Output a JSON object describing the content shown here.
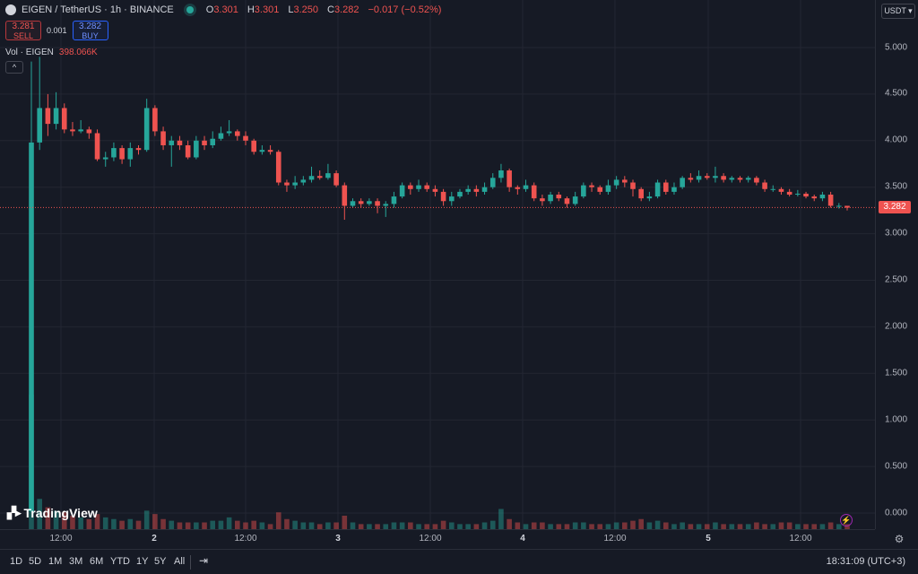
{
  "header": {
    "symbol_title": "EIGEN / TetherUS · 1h · BINANCE",
    "ohlc": [
      {
        "key": "O",
        "value": "3.301"
      },
      {
        "key": "H",
        "value": "3.301"
      },
      {
        "key": "L",
        "value": "3.250"
      },
      {
        "key": "C",
        "value": "3.282"
      }
    ],
    "change": "−0.017 (−0.52%)"
  },
  "trade": {
    "sell_price": "3.281",
    "sell_label": "SELL",
    "spread": "0.001",
    "buy_price": "3.282",
    "buy_label": "BUY"
  },
  "volume": {
    "label": "Vol · EIGEN",
    "value": "398.066K"
  },
  "collapse_icon": "chevron-up-icon",
  "currency": "USDT ▾",
  "last_price_label": "3.282",
  "watermark": "TradingView",
  "price_axis": [
    "5.000",
    "4.500",
    "4.000",
    "3.500",
    "3.000",
    "2.500",
    "2.000",
    "1.500",
    "1.000",
    "0.500",
    "0.000"
  ],
  "time_axis": [
    "12:00",
    "2",
    "12:00",
    "3",
    "12:00",
    "4",
    "12:00",
    "5",
    "12:00"
  ],
  "ranges": [
    "1D",
    "5D",
    "1M",
    "3M",
    "6M",
    "YTD",
    "1Y",
    "5Y",
    "All"
  ],
  "clock": "18:31:09 (UTC+3)",
  "colors": {
    "up": "#26a69a",
    "down": "#ef5350",
    "background": "#161a25",
    "grid": "#232632"
  },
  "chart_data": {
    "type": "candlestick",
    "ylim": [
      0,
      5.2
    ],
    "candles": [
      [
        0.02,
        3.98,
        4.85,
        0.01,
        8.0
      ],
      [
        3.98,
        4.35,
        4.9,
        3.9,
        1.8
      ],
      [
        4.35,
        4.18,
        4.5,
        4.05,
        1.3
      ],
      [
        4.18,
        4.35,
        4.52,
        4.12,
        1.1
      ],
      [
        4.35,
        4.12,
        4.4,
        4.08,
        1.0
      ],
      [
        4.12,
        4.1,
        4.2,
        4.05,
        0.8
      ],
      [
        4.1,
        4.12,
        4.22,
        4.08,
        0.7
      ],
      [
        4.12,
        4.08,
        4.15,
        4.02,
        0.6
      ],
      [
        4.08,
        3.8,
        4.12,
        3.78,
        0.9
      ],
      [
        3.8,
        3.82,
        3.88,
        3.72,
        0.7
      ],
      [
        3.82,
        3.92,
        3.98,
        3.78,
        0.6
      ],
      [
        3.92,
        3.8,
        3.95,
        3.75,
        0.5
      ],
      [
        3.8,
        3.92,
        3.98,
        3.72,
        0.6
      ],
      [
        3.92,
        3.9,
        3.95,
        3.85,
        0.5
      ],
      [
        3.9,
        4.35,
        4.45,
        3.88,
        1.1
      ],
      [
        4.35,
        4.1,
        4.38,
        4.05,
        0.9
      ],
      [
        4.1,
        3.95,
        4.15,
        3.9,
        0.6
      ],
      [
        3.95,
        4.0,
        4.05,
        3.72,
        0.5
      ],
      [
        4.0,
        3.95,
        4.05,
        3.9,
        0.4
      ],
      [
        3.95,
        3.82,
        4.0,
        3.8,
        0.4
      ],
      [
        3.82,
        4.0,
        4.05,
        3.8,
        0.4
      ],
      [
        4.0,
        3.95,
        4.05,
        3.9,
        0.4
      ],
      [
        3.95,
        4.02,
        4.1,
        3.92,
        0.5
      ],
      [
        4.02,
        4.08,
        4.15,
        4.0,
        0.5
      ],
      [
        4.08,
        4.1,
        4.22,
        4.05,
        0.7
      ],
      [
        4.1,
        4.05,
        4.12,
        4.0,
        0.5
      ],
      [
        4.05,
        4.0,
        4.1,
        3.95,
        0.4
      ],
      [
        4.0,
        3.88,
        4.02,
        3.85,
        0.5
      ],
      [
        3.88,
        3.9,
        3.95,
        3.85,
        0.4
      ],
      [
        3.9,
        3.88,
        3.95,
        3.85,
        0.3
      ],
      [
        3.88,
        3.55,
        3.9,
        3.52,
        1.0
      ],
      [
        3.55,
        3.52,
        3.58,
        3.45,
        0.6
      ],
      [
        3.52,
        3.55,
        3.62,
        3.48,
        0.5
      ],
      [
        3.55,
        3.58,
        3.62,
        3.52,
        0.4
      ],
      [
        3.58,
        3.62,
        3.72,
        3.55,
        0.4
      ],
      [
        3.62,
        3.6,
        3.68,
        3.58,
        0.3
      ],
      [
        3.6,
        3.65,
        3.75,
        3.58,
        0.4
      ],
      [
        3.65,
        3.52,
        3.68,
        3.5,
        0.4
      ],
      [
        3.52,
        3.3,
        3.55,
        3.15,
        0.8
      ],
      [
        3.3,
        3.35,
        3.38,
        3.28,
        0.4
      ],
      [
        3.35,
        3.32,
        3.38,
        3.28,
        0.3
      ],
      [
        3.32,
        3.35,
        3.38,
        3.3,
        0.3
      ],
      [
        3.35,
        3.3,
        3.38,
        3.22,
        0.3
      ],
      [
        3.3,
        3.32,
        3.35,
        3.18,
        0.3
      ],
      [
        3.32,
        3.4,
        3.45,
        3.28,
        0.4
      ],
      [
        3.4,
        3.52,
        3.55,
        3.38,
        0.4
      ],
      [
        3.52,
        3.48,
        3.55,
        3.42,
        0.4
      ],
      [
        3.48,
        3.52,
        3.58,
        3.45,
        0.3
      ],
      [
        3.52,
        3.48,
        3.55,
        3.45,
        0.3
      ],
      [
        3.48,
        3.45,
        3.52,
        3.4,
        0.3
      ],
      [
        3.45,
        3.35,
        3.48,
        3.3,
        0.5
      ],
      [
        3.35,
        3.4,
        3.45,
        3.3,
        0.4
      ],
      [
        3.4,
        3.45,
        3.48,
        3.38,
        0.3
      ],
      [
        3.45,
        3.48,
        3.52,
        3.42,
        0.3
      ],
      [
        3.48,
        3.45,
        3.52,
        3.4,
        0.3
      ],
      [
        3.45,
        3.5,
        3.55,
        3.42,
        0.4
      ],
      [
        3.5,
        3.6,
        3.65,
        3.48,
        0.5
      ],
      [
        3.6,
        3.68,
        3.75,
        3.55,
        1.2
      ],
      [
        3.68,
        3.5,
        3.7,
        3.45,
        0.6
      ],
      [
        3.5,
        3.48,
        3.52,
        3.42,
        0.4
      ],
      [
        3.48,
        3.52,
        3.58,
        3.45,
        0.3
      ],
      [
        3.52,
        3.38,
        3.55,
        3.35,
        0.4
      ],
      [
        3.38,
        3.35,
        3.42,
        3.3,
        0.4
      ],
      [
        3.35,
        3.42,
        3.45,
        3.32,
        0.3
      ],
      [
        3.42,
        3.38,
        3.45,
        3.35,
        0.3
      ],
      [
        3.38,
        3.32,
        3.4,
        3.28,
        0.3
      ],
      [
        3.32,
        3.4,
        3.45,
        3.3,
        0.4
      ],
      [
        3.4,
        3.52,
        3.55,
        3.38,
        0.4
      ],
      [
        3.52,
        3.5,
        3.55,
        3.45,
        0.3
      ],
      [
        3.5,
        3.45,
        3.52,
        3.42,
        0.3
      ],
      [
        3.45,
        3.52,
        3.58,
        3.42,
        0.3
      ],
      [
        3.52,
        3.58,
        3.62,
        3.48,
        0.4
      ],
      [
        3.58,
        3.55,
        3.62,
        3.5,
        0.4
      ],
      [
        3.55,
        3.48,
        3.58,
        3.4,
        0.5
      ],
      [
        3.48,
        3.38,
        3.5,
        3.35,
        0.6
      ],
      [
        3.38,
        3.4,
        3.45,
        3.35,
        0.4
      ],
      [
        3.4,
        3.55,
        3.58,
        3.38,
        0.5
      ],
      [
        3.55,
        3.45,
        3.58,
        3.42,
        0.4
      ],
      [
        3.45,
        3.5,
        3.55,
        3.42,
        0.3
      ],
      [
        3.5,
        3.6,
        3.62,
        3.48,
        0.4
      ],
      [
        3.6,
        3.58,
        3.65,
        3.55,
        0.3
      ],
      [
        3.58,
        3.62,
        3.68,
        3.55,
        0.3
      ],
      [
        3.62,
        3.6,
        3.65,
        3.58,
        0.3
      ],
      [
        3.6,
        3.62,
        3.72,
        3.55,
        0.4
      ],
      [
        3.62,
        3.58,
        3.65,
        3.55,
        0.3
      ],
      [
        3.58,
        3.6,
        3.62,
        3.55,
        0.3
      ],
      [
        3.6,
        3.58,
        3.62,
        3.55,
        0.3
      ],
      [
        3.58,
        3.6,
        3.62,
        3.55,
        0.3
      ],
      [
        3.6,
        3.55,
        3.62,
        3.52,
        0.4
      ],
      [
        3.55,
        3.48,
        3.58,
        3.45,
        0.3
      ],
      [
        3.48,
        3.48,
        3.52,
        3.45,
        0.3
      ],
      [
        3.48,
        3.45,
        3.5,
        3.42,
        0.4
      ],
      [
        3.45,
        3.42,
        3.48,
        3.4,
        0.4
      ],
      [
        3.42,
        3.43,
        3.47,
        3.4,
        0.3
      ],
      [
        3.43,
        3.4,
        3.45,
        3.38,
        0.3
      ],
      [
        3.4,
        3.38,
        3.42,
        3.35,
        0.3
      ],
      [
        3.38,
        3.42,
        3.45,
        3.35,
        0.3
      ],
      [
        3.42,
        3.3,
        3.45,
        3.28,
        0.4
      ],
      [
        3.3,
        3.3,
        3.33,
        3.27,
        0.3
      ],
      [
        3.3,
        3.28,
        3.3,
        3.25,
        0.3
      ]
    ]
  }
}
